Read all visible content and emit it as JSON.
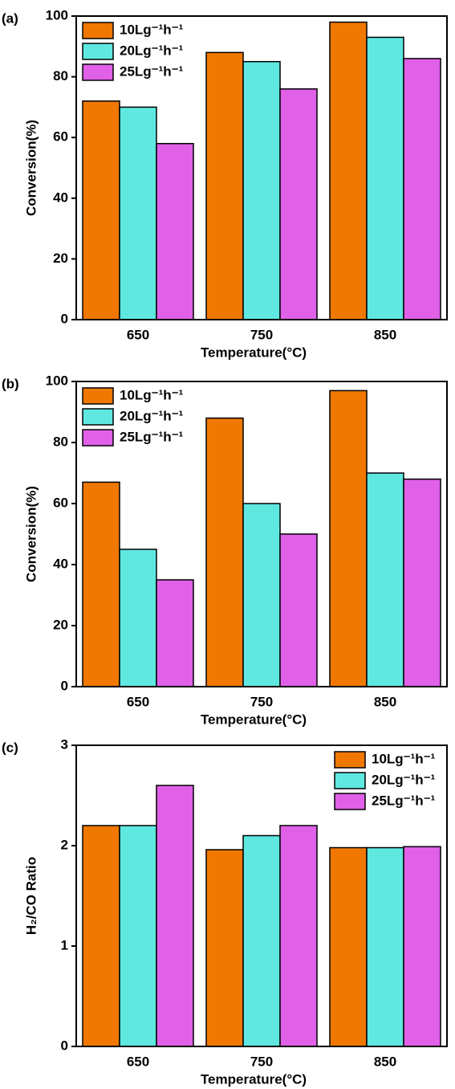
{
  "chart_data": [
    {
      "type": "bar",
      "panel_label": "(a)",
      "x_label": "Temperature(°C)",
      "y_label": "Conversion(%)",
      "categories": [
        "650",
        "750",
        "850"
      ],
      "series": [
        {
          "name": "10Lg⁻¹h⁻¹",
          "color": "#f07800",
          "values": [
            72,
            88,
            98
          ]
        },
        {
          "name": "20Lg⁻¹h⁻¹",
          "color": "#5ee8e0",
          "values": [
            70,
            85,
            93
          ]
        },
        {
          "name": "25Lg⁻¹h⁻¹",
          "color": "#e060e8",
          "values": [
            58,
            76,
            86
          ]
        }
      ],
      "ylim": [
        0,
        100
      ],
      "yticks": [
        0,
        20,
        40,
        60,
        80,
        100
      ],
      "legend": "upper left"
    },
    {
      "type": "bar",
      "panel_label": "(b)",
      "x_label": "Temperature(°C)",
      "y_label": "Conversion(%)",
      "categories": [
        "650",
        "750",
        "850"
      ],
      "series": [
        {
          "name": "10Lg⁻¹h⁻¹",
          "color": "#f07800",
          "values": [
            67,
            88,
            97
          ]
        },
        {
          "name": "20Lg⁻¹h⁻¹",
          "color": "#5ee8e0",
          "values": [
            45,
            60,
            70
          ]
        },
        {
          "name": "25Lg⁻¹h⁻¹",
          "color": "#e060e8",
          "values": [
            35,
            50,
            68
          ]
        }
      ],
      "ylim": [
        0,
        100
      ],
      "yticks": [
        0,
        20,
        40,
        60,
        80,
        100
      ],
      "legend": "upper left"
    },
    {
      "type": "bar",
      "panel_label": "(c)",
      "x_label": "Temperature(°C)",
      "y_label": "H₂/CO Ratio",
      "categories": [
        "650",
        "750",
        "850"
      ],
      "series": [
        {
          "name": "10Lg⁻¹h⁻¹",
          "color": "#f07800",
          "values": [
            2.2,
            1.96,
            1.98
          ]
        },
        {
          "name": "20Lg⁻¹h⁻¹",
          "color": "#5ee8e0",
          "values": [
            2.2,
            2.1,
            1.98
          ]
        },
        {
          "name": "25Lg⁻¹h⁻¹",
          "color": "#e060e8",
          "values": [
            2.6,
            2.2,
            1.99
          ]
        }
      ],
      "ylim": [
        0,
        3
      ],
      "yticks": [
        0,
        1,
        2,
        3
      ],
      "legend": "upper right"
    }
  ]
}
